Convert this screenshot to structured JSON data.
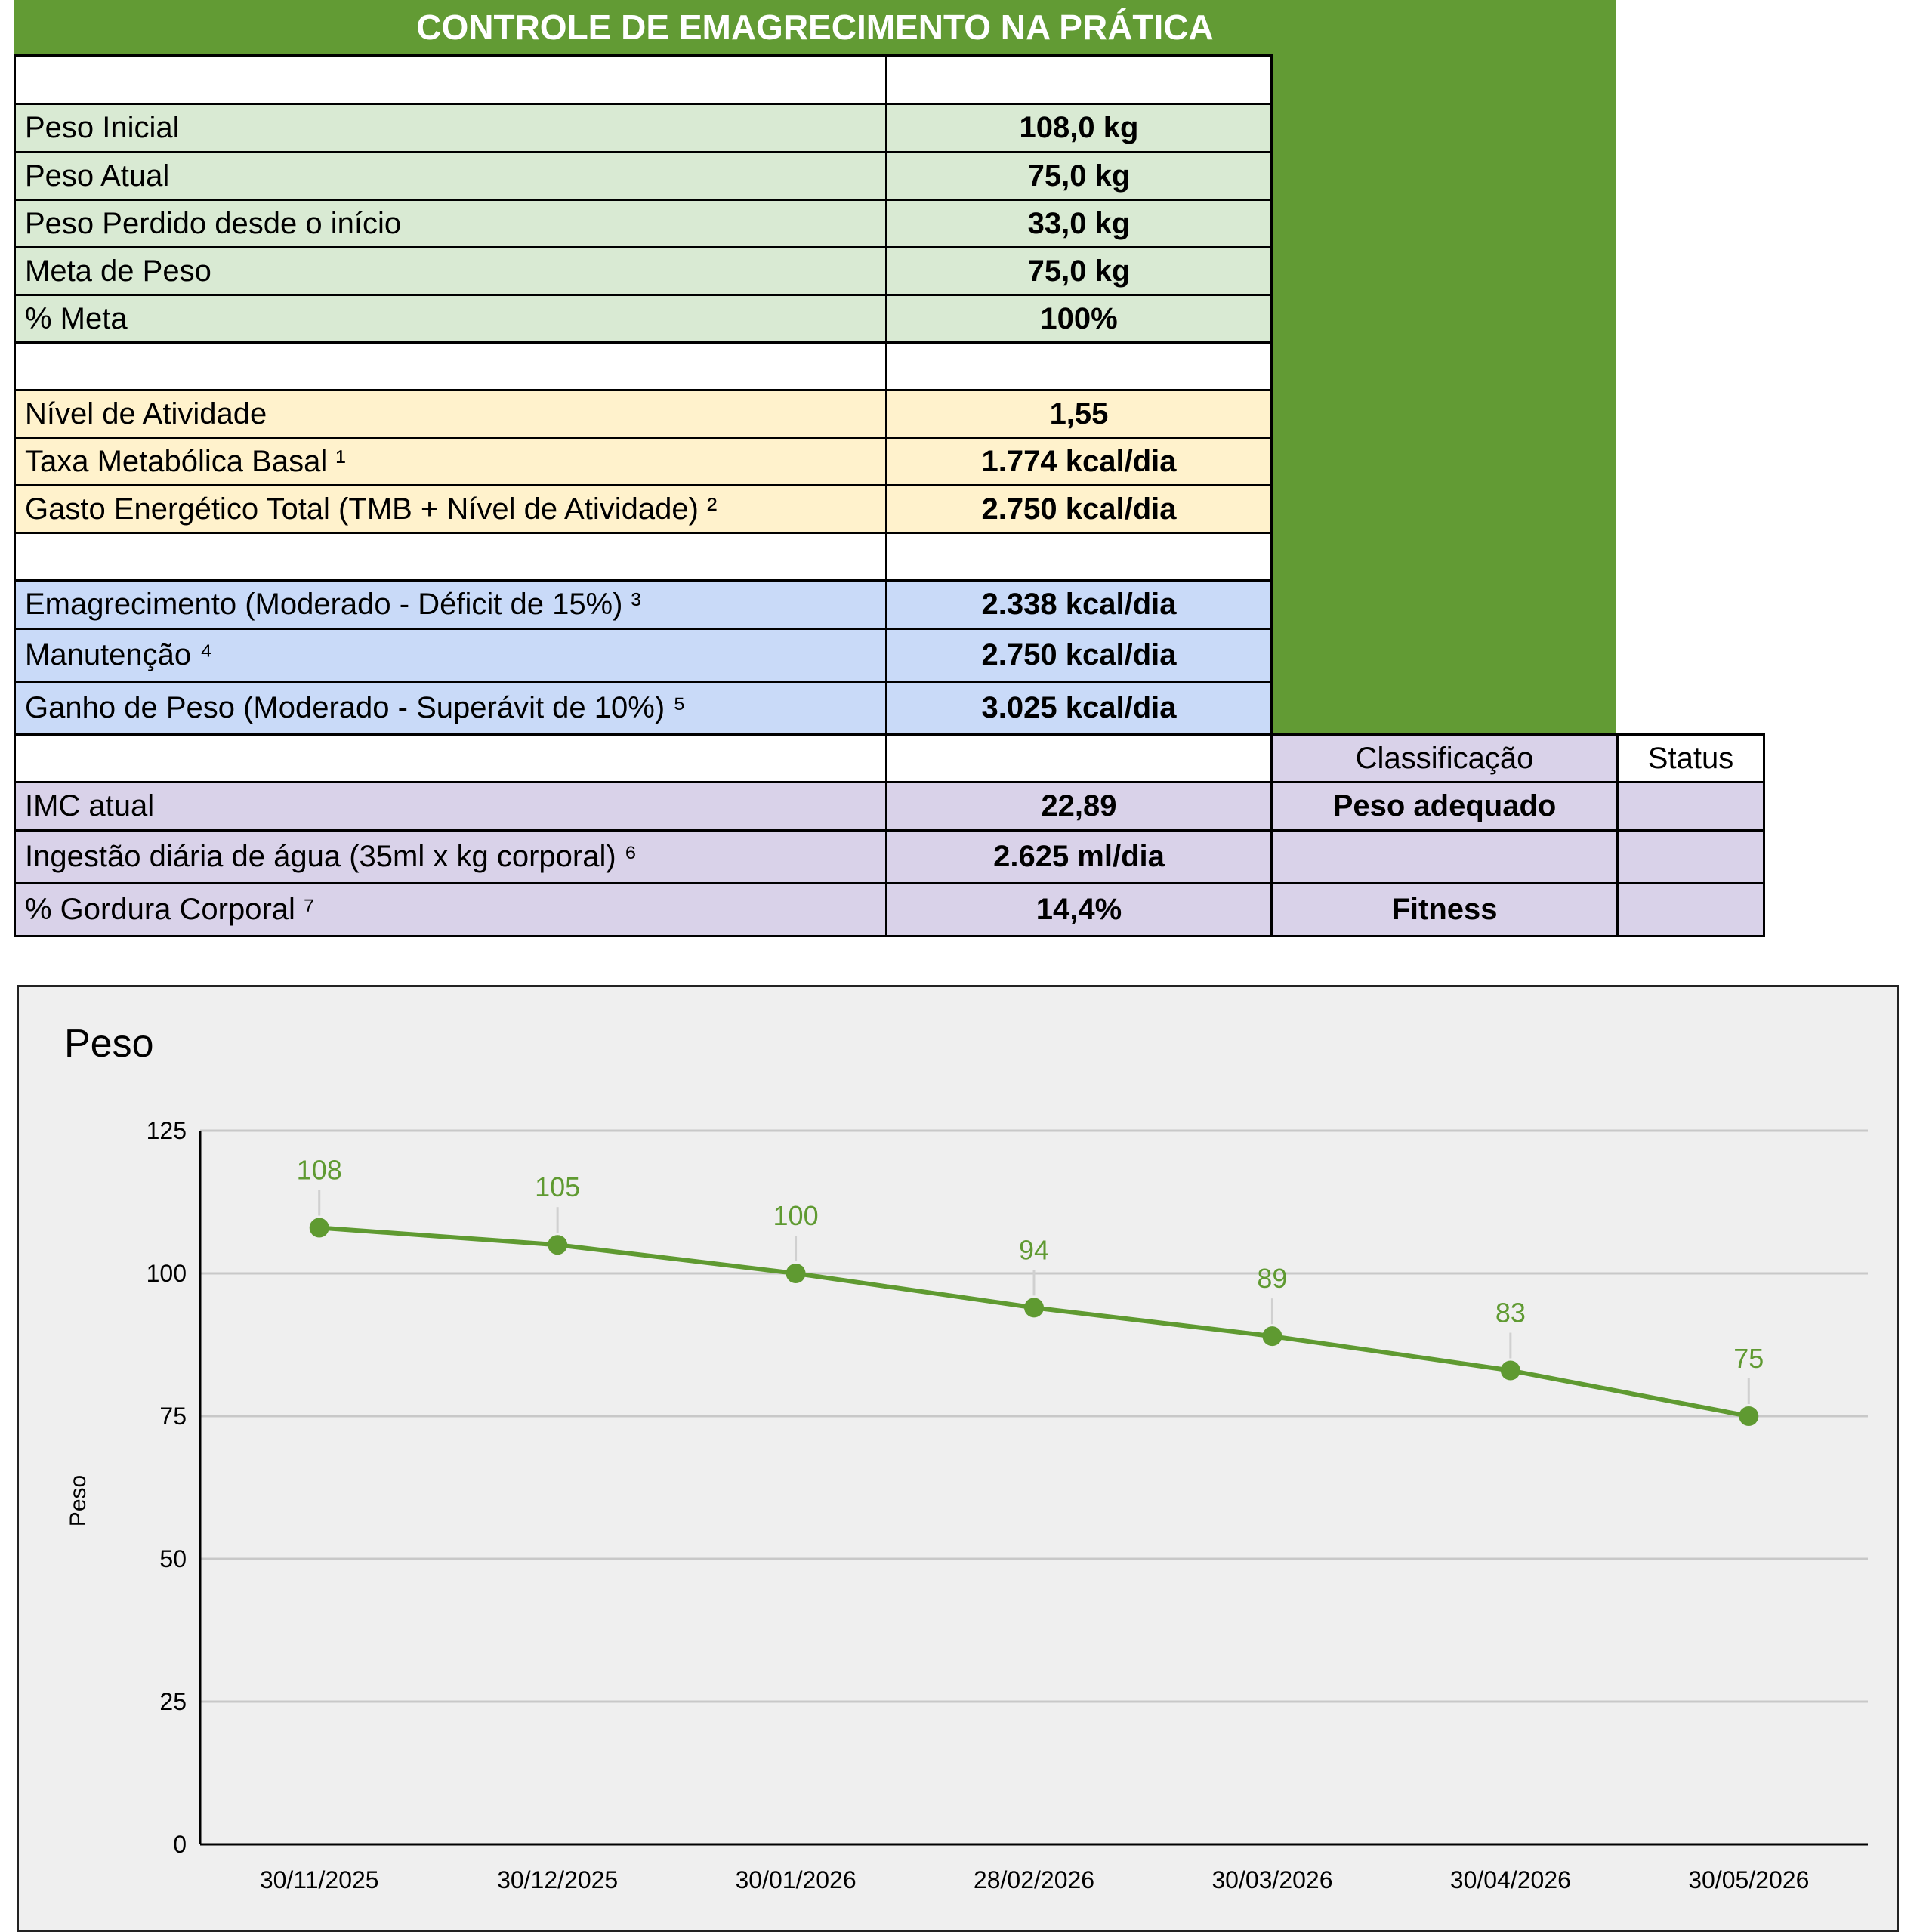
{
  "title": "CONTROLE DE EMAGRECIMENTO NA PRÁTICA",
  "rows_green": [
    {
      "label": "Peso Inicial",
      "value": "108,0 kg"
    },
    {
      "label": "Peso Atual",
      "value": "75,0 kg"
    },
    {
      "label": "Peso Perdido desde o início",
      "value": "33,0 kg"
    },
    {
      "label": "Meta de Peso",
      "value": "75,0 kg"
    },
    {
      "label": "% Meta",
      "value": "100%"
    }
  ],
  "rows_yellow": [
    {
      "label": "Nível de Atividade",
      "value": "1,55"
    },
    {
      "label": "Taxa Metabólica Basal ¹",
      "value": "1.774 kcal/dia"
    },
    {
      "label": "Gasto Energético Total (TMB + Nível de Atividade) ²",
      "value": "2.750 kcal/dia"
    }
  ],
  "rows_blue": [
    {
      "label": "Emagrecimento (Moderado - Déficit de 15%) ³",
      "value": "2.338 kcal/dia"
    },
    {
      "label": "Manutenção ⁴",
      "value": "2.750 kcal/dia"
    },
    {
      "label": "Ganho de Peso (Moderado - Superávit de 10%) ⁵",
      "value": "3.025 kcal/dia"
    }
  ],
  "headers": {
    "classification": "Classificação",
    "status": "Status"
  },
  "rows_purple": [
    {
      "label": "IMC atual",
      "value": "22,89",
      "classification": "Peso adequado",
      "status": ""
    },
    {
      "label": "Ingestão diária de água (35ml x kg corporal) ⁶",
      "value": "2.625 ml/dia",
      "classification": "",
      "status": ""
    },
    {
      "label": "% Gordura Corporal ⁷",
      "value": "14,4%",
      "classification": "Fitness",
      "status": ""
    }
  ],
  "colors": {
    "accent": "#629b34",
    "line": "#5f9a31",
    "label": "#5f9a31"
  },
  "chart_data": {
    "type": "line",
    "title": "Peso",
    "xlabel": "",
    "ylabel": "Peso",
    "categories": [
      "30/11/2025",
      "30/12/2025",
      "30/01/2026",
      "28/02/2026",
      "30/03/2026",
      "30/04/2026",
      "30/05/2026"
    ],
    "series": [
      {
        "values": [
          108,
          105,
          100,
          94,
          89,
          83,
          75
        ]
      }
    ],
    "ylim": [
      0,
      125
    ],
    "yticks": [
      0,
      25,
      50,
      75,
      100,
      125
    ],
    "grid": true,
    "data_labels": true
  }
}
